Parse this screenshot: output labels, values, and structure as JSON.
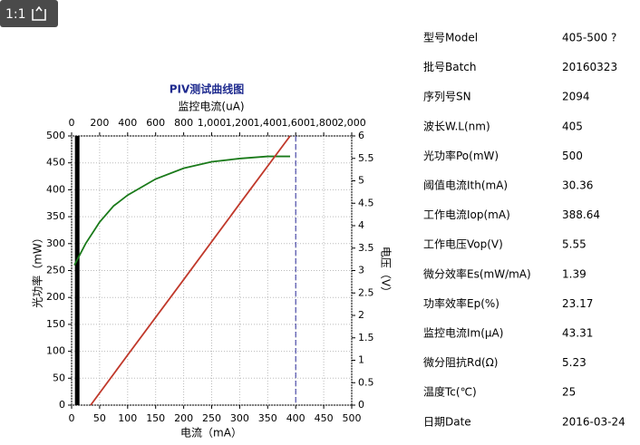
{
  "viewer": {
    "zoom": "1:1"
  },
  "chart_data": {
    "type": "line",
    "title": "PIV测试曲线图",
    "x_label": "电流（mA）",
    "x2_label": "监控电流(uA)",
    "y_label": "光功率（mW）",
    "y2_label": "电压（V）",
    "xlim": [
      0,
      500
    ],
    "xticks": [
      0,
      50,
      100,
      150,
      200,
      250,
      300,
      350,
      400,
      450,
      500
    ],
    "x2lim": [
      0,
      2000
    ],
    "x2ticks": [
      0,
      200,
      400,
      600,
      800,
      {
        "value": 1000,
        "label": "1,000"
      },
      {
        "value": 1200,
        "label": "1,200"
      },
      {
        "value": 1400,
        "label": "1,400"
      },
      {
        "value": 1600,
        "label": "1,600"
      },
      {
        "value": 1800,
        "label": "1,800"
      },
      {
        "value": 2000,
        "label": "2,000"
      }
    ],
    "ylim": [
      0,
      500
    ],
    "yticks": [
      0,
      50,
      100,
      150,
      200,
      250,
      300,
      350,
      400,
      450,
      500
    ],
    "y2lim": [
      0,
      6
    ],
    "y2ticks": [
      0,
      0.5,
      1,
      1.5,
      2,
      2.5,
      3,
      3.5,
      4,
      4.5,
      5,
      5.5,
      6
    ],
    "grid": true,
    "series": [
      {
        "color": "#1a7a1a",
        "x": [
          5,
          25,
          50,
          75,
          100,
          150,
          200,
          250,
          300,
          350,
          390
        ],
        "values": [
          260,
          300,
          340,
          370,
          390,
          420,
          440,
          452,
          458,
          462,
          462
        ]
      },
      {
        "color": "#c0392b",
        "x": [
          34,
          100,
          200,
          300,
          390
        ],
        "values": [
          0,
          93,
          233,
          374,
          500
        ]
      }
    ],
    "vlines": [
      {
        "x": 10,
        "color": "#000000",
        "style": "solid"
      },
      {
        "x": 400,
        "color": "#2a2a9a",
        "style": "dashed"
      }
    ]
  },
  "specs": [
    [
      "型号Model",
      "405-500 ?"
    ],
    [
      "批号Batch",
      "20160323"
    ],
    [
      "序列号SN",
      "2094"
    ],
    [
      "波长W.L(nm)",
      "405"
    ],
    [
      "光功率Po(mW)",
      "500"
    ],
    [
      "阈值电流Ith(mA)",
      "30.36"
    ],
    [
      "工作电流Iop(mA)",
      "388.64"
    ],
    [
      "工作电压Vop(V)",
      "5.55"
    ],
    [
      "微分效率Es(mW/mA)",
      "1.39"
    ],
    [
      "功率效率Ep(%)",
      "23.17"
    ],
    [
      "监控电流Im(μA)",
      "43.31"
    ],
    [
      "微分阻抗Rd(Ω)",
      "5.23"
    ],
    [
      "温度Tc(℃)",
      "25"
    ],
    [
      "日期Date",
      "2016-03-24"
    ]
  ]
}
